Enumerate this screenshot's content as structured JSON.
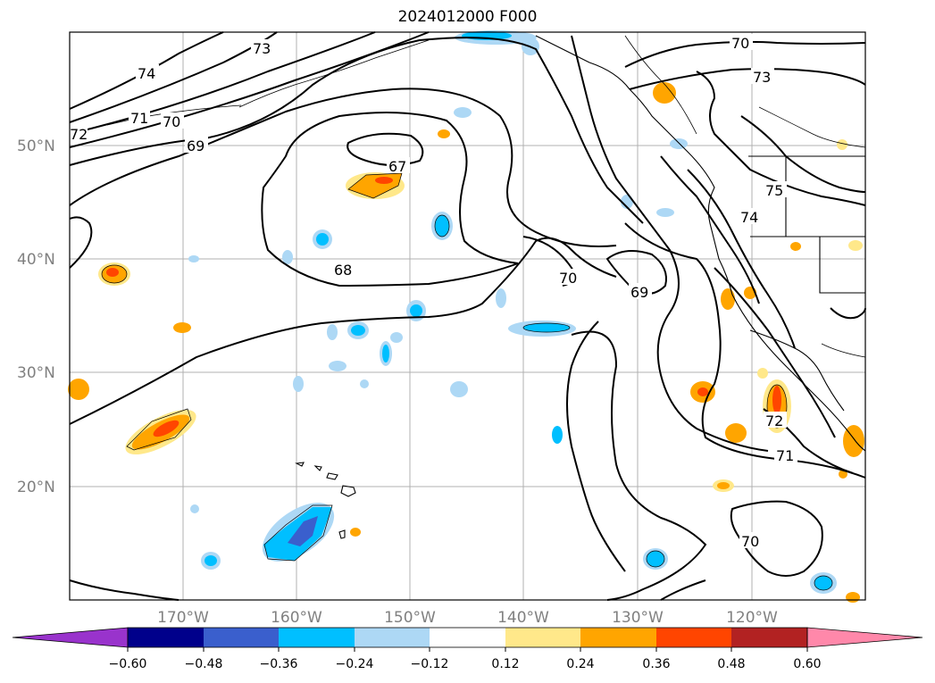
{
  "title": "2024012000 F000",
  "map": {
    "lat_labels": [
      "50°N",
      "40°N",
      "30°N",
      "20°N"
    ],
    "lon_labels": [
      "170°W",
      "160°W",
      "150°W",
      "140°W",
      "130°W",
      "120°W"
    ]
  },
  "contour_labels": [
    "74",
    "73",
    "72",
    "71",
    "70",
    "69",
    "67",
    "68",
    "70",
    "69",
    "70",
    "73",
    "75",
    "74",
    "72",
    "71",
    "70"
  ],
  "colorbar": {
    "colors": [
      "#9933cc",
      "#00008b",
      "#3a5fcd",
      "#00bfff",
      "#add8f5",
      "#ffffff",
      "#ffe88a",
      "#ffa500",
      "#ff4500",
      "#b22222",
      "#ff88aa"
    ],
    "ticks": [
      "−0.60",
      "−0.48",
      "−0.36",
      "−0.24",
      "−0.12",
      "0.12",
      "0.24",
      "0.36",
      "0.48",
      "0.60"
    ]
  },
  "colors": {
    "positive_fill": "#ffa500",
    "negative_fill": "#00bfff",
    "strong_positive": "#ff4500",
    "strong_negative": "#3a5fcd",
    "weak_positive": "#ffe88a",
    "weak_negative": "#add8f5"
  }
}
